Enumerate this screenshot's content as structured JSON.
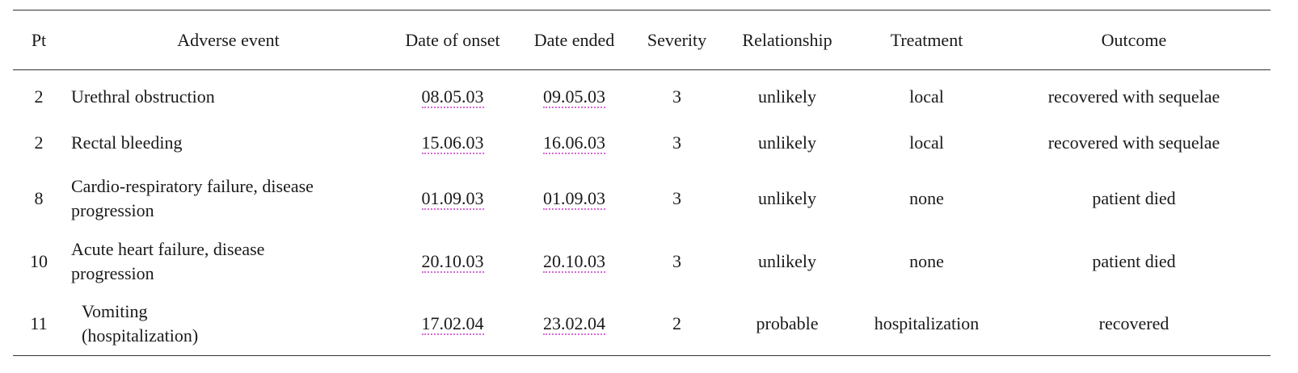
{
  "table": {
    "headers": [
      "Pt",
      "Adverse event",
      "Date of onset",
      "Date ended",
      "Severity",
      "Relationship",
      "Treatment",
      "Outcome"
    ],
    "rows": [
      {
        "pt": "2",
        "event_lines": [
          "Urethral obstruction"
        ],
        "onset": "08.05.03",
        "ended": "09.05.03",
        "severity": "3",
        "relationship": "unlikely",
        "treatment": "local",
        "outcome": "recovered with sequelae"
      },
      {
        "pt": "2",
        "event_lines": [
          "Rectal bleeding"
        ],
        "onset": "15.06.03",
        "ended": "16.06.03",
        "severity": "3",
        "relationship": "unlikely",
        "treatment": "local",
        "outcome": "recovered with sequelae"
      },
      {
        "pt": "8",
        "event_lines": [
          "Cardio-respiratory failure, disease",
          "progression"
        ],
        "onset": "01.09.03",
        "ended": "01.09.03",
        "severity": "3",
        "relationship": "unlikely",
        "treatment": "none",
        "outcome": "patient died"
      },
      {
        "pt": "10",
        "event_lines": [
          "Acute heart failure, disease",
          "progression"
        ],
        "onset": "20.10.03",
        "ended": "20.10.03",
        "severity": "3",
        "relationship": "unlikely",
        "treatment": "none",
        "outcome": "patient died"
      },
      {
        "pt": "11",
        "event_lines": [
          "Vomiting",
          "(hospitalization)"
        ],
        "onset": "17.02.04",
        "ended": "23.02.04",
        "severity": "2",
        "relationship": "probable",
        "treatment": "hospitalization",
        "outcome": "recovered"
      }
    ]
  }
}
